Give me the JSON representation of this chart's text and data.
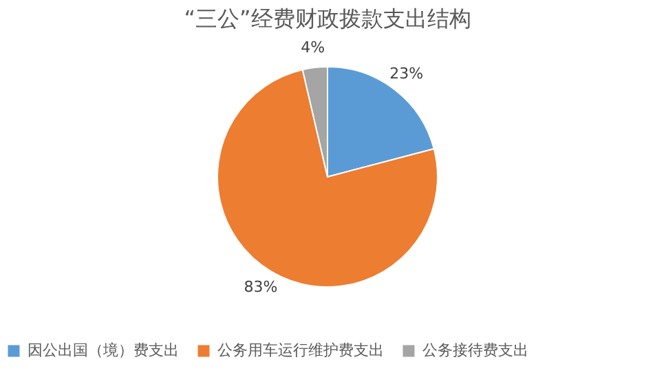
{
  "chart_data": {
    "type": "pie",
    "title": "“三公”经费财政拨款支出结构",
    "categories": [
      "因公出国（境）费支出",
      "公务用车运行维护费支出",
      "公务接待费支出"
    ],
    "values": [
      23,
      83,
      4
    ],
    "colors": [
      "#5b9bd5",
      "#ed7d31",
      "#a5a5a5"
    ],
    "value_labels": [
      "23%",
      "83%",
      "4%"
    ],
    "legend": "bottom"
  }
}
